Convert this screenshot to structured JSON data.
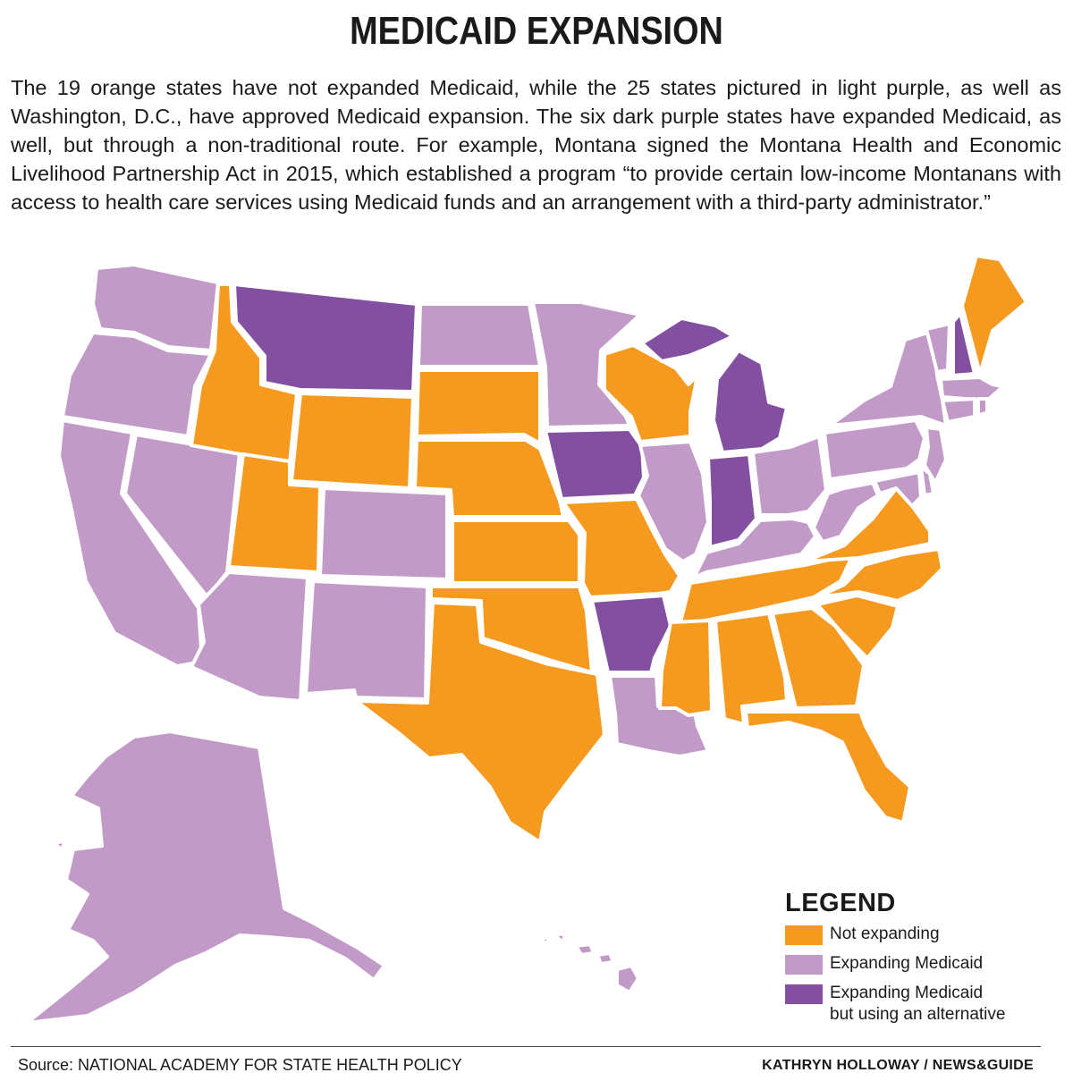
{
  "title": "MEDICAID EXPANSION",
  "intro": "The 19 orange states have not expanded Medicaid, while the 25 states pictured in light purple, as well as Washington, D.C., have approved Medicaid expansion. The six dark purple states have expanded Medicaid, as well, but through a non-traditional route. For example, Montana signed the Montana Health and Economic Livelihood Partnership Act in 2015, which established a program “to provide certain low-income Montanans with access to health care services using Medicaid funds and an arrangement with a third-party administrator.”",
  "colors": {
    "not_expanding": "#f5991f",
    "expanding": "#c29ac8",
    "alternative": "#834fa0"
  },
  "states": {
    "WA": "expanding",
    "OR": "expanding",
    "CA": "expanding",
    "NV": "expanding",
    "ID": "not_expanding",
    "MT": "alternative",
    "WY": "not_expanding",
    "UT": "not_expanding",
    "AZ": "expanding",
    "CO": "expanding",
    "NM": "expanding",
    "ND": "expanding",
    "SD": "not_expanding",
    "NE": "not_expanding",
    "KS": "not_expanding",
    "OK": "not_expanding",
    "TX": "not_expanding",
    "MN": "expanding",
    "IA": "alternative",
    "MO": "not_expanding",
    "AR": "alternative",
    "LA": "expanding",
    "WI": "not_expanding",
    "IL": "expanding",
    "MI": "alternative",
    "IN": "alternative",
    "OH": "expanding",
    "KY": "expanding",
    "TN": "not_expanding",
    "MS": "not_expanding",
    "AL": "not_expanding",
    "GA": "not_expanding",
    "FL": "not_expanding",
    "SC": "not_expanding",
    "NC": "not_expanding",
    "VA": "not_expanding",
    "WV": "expanding",
    "PA": "expanding",
    "NY": "expanding",
    "VT": "expanding",
    "NH": "alternative",
    "ME": "not_expanding",
    "MA": "expanding",
    "CT": "expanding",
    "RI": "expanding",
    "NJ": "expanding",
    "DE": "expanding",
    "MD": "expanding",
    "DC": "expanding",
    "AK": "expanding",
    "HI": "expanding"
  },
  "legend": {
    "title": "LEGEND",
    "items": [
      {
        "key": "not_expanding",
        "label": "Not expanding"
      },
      {
        "key": "expanding",
        "label": "Expanding Medicaid"
      },
      {
        "key": "alternative",
        "label": "Expanding Medicaid\nbut using an alternative"
      }
    ]
  },
  "source": "Source: NATIONAL ACADEMY FOR STATE HEALTH POLICY",
  "credit": "KATHRYN HOLLOWAY / NEWS&GUIDE"
}
